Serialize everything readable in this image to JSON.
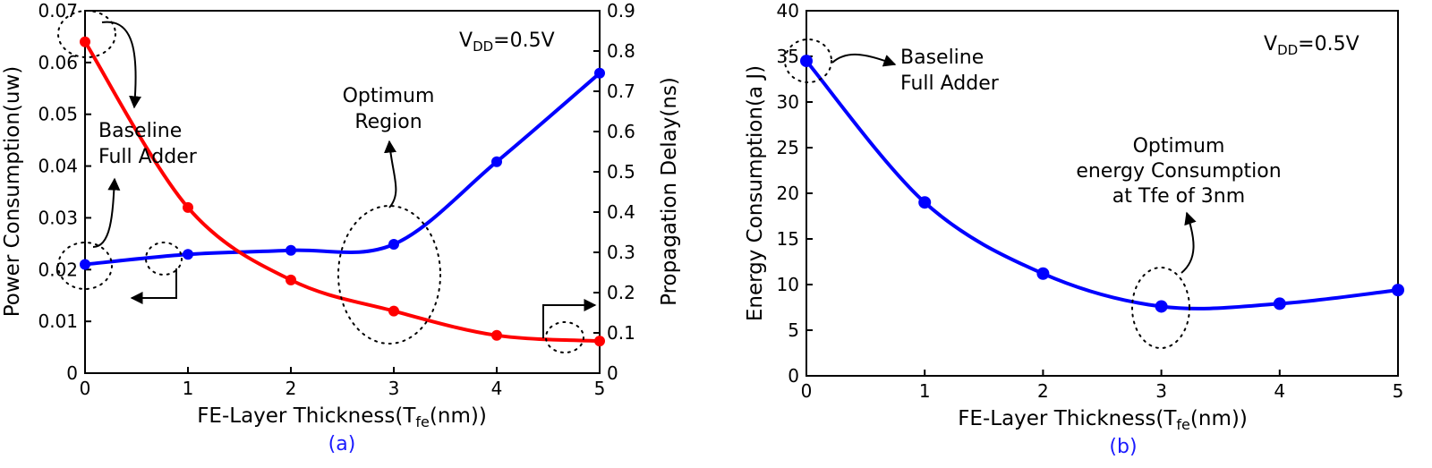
{
  "chart_data": [
    {
      "type": "line",
      "panel_label": "(a)",
      "xlabel": {
        "main": "FE-Layer Thickness(T",
        "sub": "fe",
        "tail": "(nm))"
      },
      "ylabel_left": "Power Consumption(uw)",
      "ylabel_right": "Propagation Delay(ns)",
      "x": [
        0,
        1,
        2,
        3,
        4,
        5
      ],
      "xlim": [
        0,
        5
      ],
      "ylim_left": [
        0,
        0.07
      ],
      "ylim_right": [
        0,
        0.9
      ],
      "x_ticks": [
        "0",
        "1",
        "2",
        "3",
        "4",
        "5"
      ],
      "y_ticks_left": [
        "0",
        "0.01",
        "0.02",
        "0.03",
        "0.04",
        "0.05",
        "0.06",
        "0.07"
      ],
      "y_ticks_right": [
        "0",
        "0.1",
        "0.2",
        "0.3",
        "0.4",
        "0.5",
        "0.6",
        "0.7",
        "0.8",
        "0.9"
      ],
      "series": [
        {
          "name": "Power Consumption",
          "axis": "left",
          "color": "#ff0000",
          "values": [
            0.064,
            0.032,
            0.018,
            0.012,
            0.0073,
            0.0062
          ]
        },
        {
          "name": "Propagation Delay",
          "axis": "right",
          "color": "#0000ff",
          "values": [
            0.27,
            0.295,
            0.305,
            0.32,
            0.525,
            0.745
          ]
        }
      ],
      "vdd": {
        "main": "V",
        "sub": "DD",
        "tail": "=0.5V"
      },
      "annotations": {
        "baseline_line1": "Baseline",
        "baseline_line2": "Full Adder",
        "optimum_line1": "Optimum",
        "optimum_line2": "Region"
      }
    },
    {
      "type": "line",
      "panel_label": "(b)",
      "xlabel": {
        "main": "FE-Layer Thickness(T",
        "sub": "fe",
        "tail": "(nm))"
      },
      "ylabel": "Energy Consumption(a J)",
      "x": [
        0,
        1,
        2,
        3,
        4,
        5
      ],
      "xlim": [
        0,
        5
      ],
      "ylim": [
        0,
        40
      ],
      "x_ticks": [
        "0",
        "1",
        "2",
        "3",
        "4",
        "5"
      ],
      "y_ticks": [
        "0",
        "5",
        "10",
        "15",
        "20",
        "25",
        "30",
        "35",
        "40"
      ],
      "series": [
        {
          "name": "Energy Consumption",
          "color": "#0000ff",
          "values": [
            34.5,
            19,
            11.2,
            7.6,
            7.9,
            9.4
          ]
        }
      ],
      "vdd": {
        "main": "V",
        "sub": "DD",
        "tail": "=0.5V"
      },
      "annotations": {
        "baseline_line1": "Baseline",
        "baseline_line2": "Full Adder",
        "optimum_line1": "Optimum",
        "optimum_line2": "energy Consumption",
        "optimum_line3": "at Tfe of 3nm"
      }
    }
  ]
}
